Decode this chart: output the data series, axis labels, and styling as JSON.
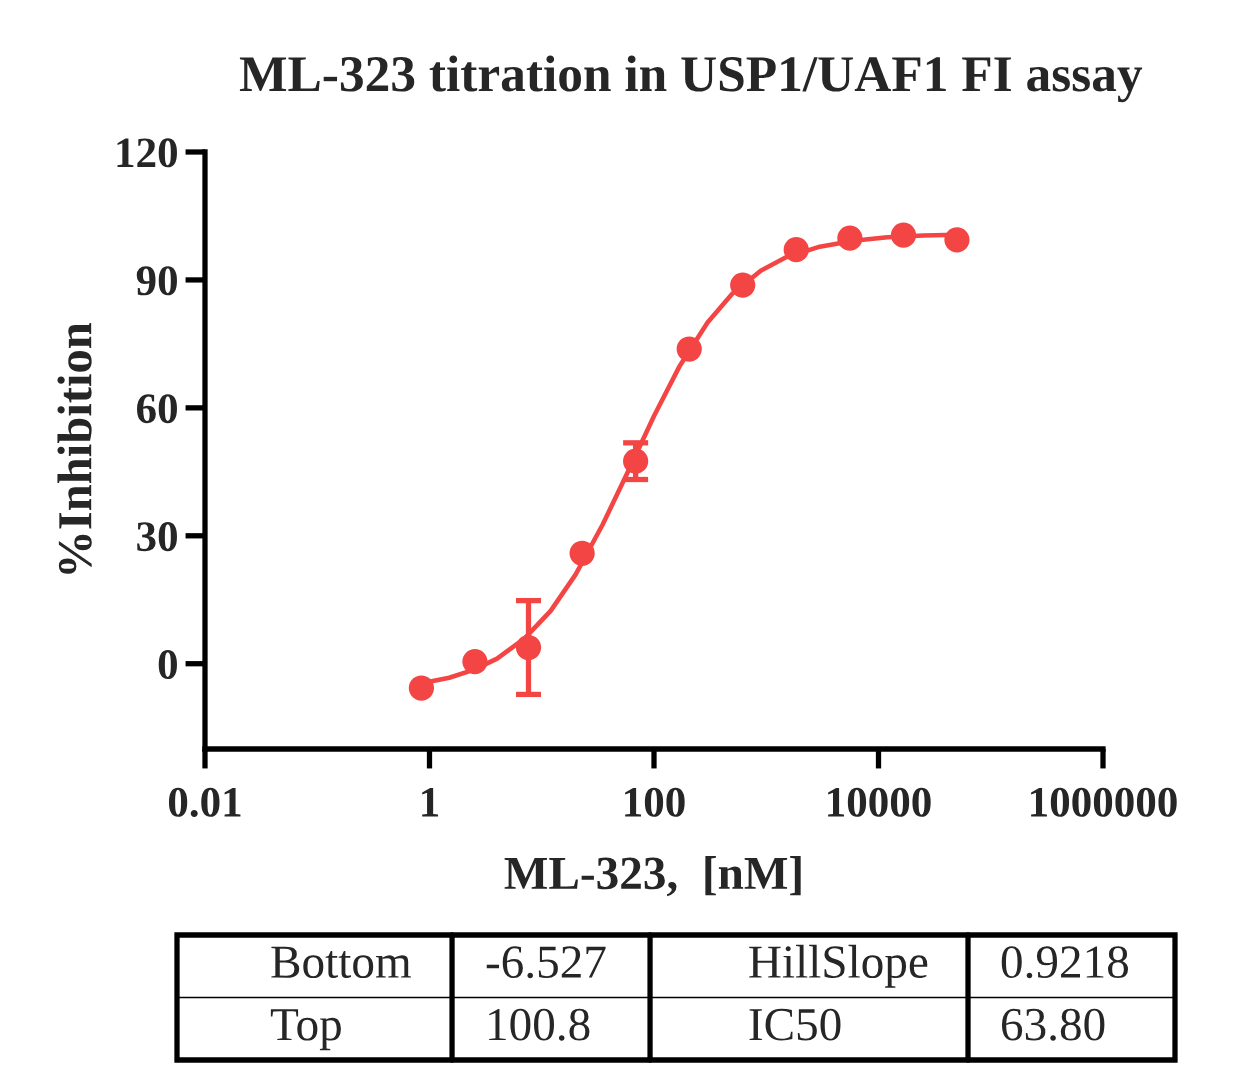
{
  "chart_data": {
    "type": "scatter",
    "title": "ML-323 titration in USP1/UAF1 FI assay",
    "xlabel": "ML-323,  [nM]",
    "ylabel": "%Inhibition",
    "log": "x",
    "xlim": [
      0.01,
      1000000
    ],
    "xticks": [
      0.01,
      1,
      100,
      10000,
      1000000
    ],
    "ylim": [
      -20,
      120
    ],
    "yticks": [
      0,
      30,
      60,
      90,
      120
    ],
    "series": [
      {
        "color": "#f44545",
        "marker": "circle",
        "x": [
          0.847,
          2.54,
          7.62,
          22.9,
          68.6,
          206,
          617,
          1850,
          5560,
          16700,
          50000
        ],
        "values": [
          -5.7,
          0.5,
          3.8,
          25.9,
          47.5,
          73.8,
          88.8,
          97.1,
          99.8,
          100.5,
          99.4
        ],
        "errors": [
          null,
          null,
          11.0,
          null,
          4.3,
          null,
          null,
          null,
          null,
          null,
          null
        ]
      },
      {
        "type": "line",
        "color": "#f44545",
        "line_style": "solid",
        "x": [
          0.85,
          1.5,
          2.5,
          4,
          7,
          12,
          20,
          35,
          60,
          100,
          170,
          300,
          500,
          900,
          1500,
          3000,
          6000,
          12000,
          25000,
          50000
        ],
        "values": [
          -4.6,
          -3.3,
          -1.4,
          1.2,
          5.9,
          12.4,
          20.9,
          32.7,
          45.6,
          58.1,
          69.9,
          80.0,
          86.8,
          92.2,
          95.3,
          97.8,
          99.2,
          100.0,
          100.4,
          100.6
        ]
      }
    ],
    "annotations": [
      "Bottom",
      "-6.527",
      "HillSlope",
      "0.9218",
      "Top",
      "100.8",
      "IC50",
      "63.80"
    ]
  }
}
